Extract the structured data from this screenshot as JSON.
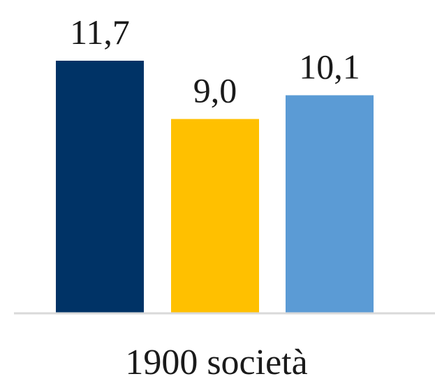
{
  "chart_data": {
    "type": "bar",
    "categories": [
      "1900 società"
    ],
    "series": [
      {
        "values": [
          11.7
        ],
        "value_label": "11,7",
        "color": "#003366"
      },
      {
        "values": [
          9.0
        ],
        "value_label": "9,0",
        "color": "#FFC000"
      },
      {
        "values": [
          10.1
        ],
        "value_label": "10,1",
        "color": "#5B9BD5"
      }
    ],
    "ylim": [
      0,
      14
    ],
    "grid": false,
    "legend": "none"
  }
}
